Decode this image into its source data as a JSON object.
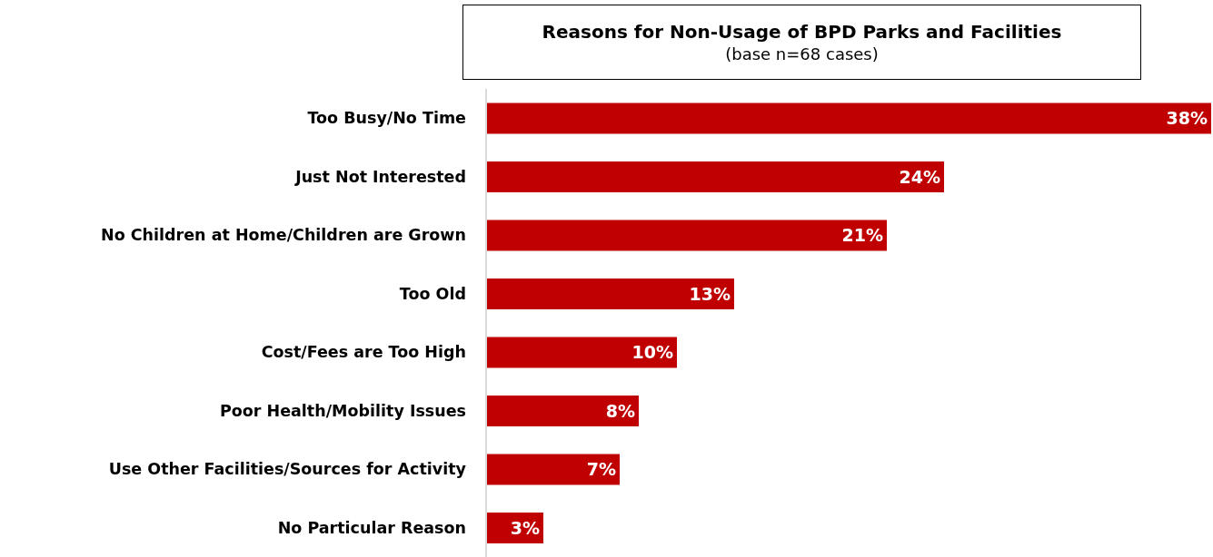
{
  "chart_data": {
    "type": "bar",
    "orientation": "horizontal",
    "title": "Reasons for Non-Usage of BPD Parks and Facilities",
    "subtitle": "(base n=68 cases)",
    "categories": [
      "Too Busy/No Time",
      "Just Not Interested",
      "No Children at Home/Children are Grown",
      "Too Old",
      "Cost/Fees are Too High",
      "Poor Health/Mobility Issues",
      "Use Other Facilities/Sources for Activity",
      "No Particular Reason"
    ],
    "values": [
      38,
      24,
      21,
      13,
      10,
      8,
      7,
      3
    ],
    "value_labels": [
      "38%",
      "24%",
      "21%",
      "13%",
      "10%",
      "8%",
      "7%",
      "3%"
    ],
    "color": "#c00000"
  }
}
